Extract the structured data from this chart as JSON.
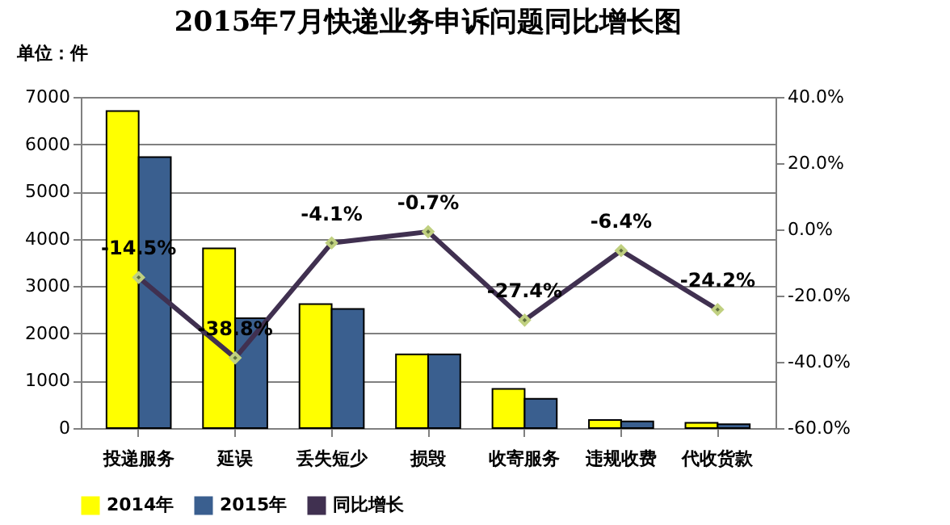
{
  "chart_data": {
    "type": "bar",
    "title": "2015年7月快递业务申诉问题同比增长图",
    "ylabel": "单位：件",
    "categories": [
      "投递服务",
      "延误",
      "丢失短少",
      "损毁",
      "收寄服务",
      "违规收费",
      "代收货款"
    ],
    "series": [
      {
        "name": "2014年",
        "color": "#ffff00",
        "values": [
          6700,
          3800,
          2620,
          1560,
          830,
          170,
          110
        ]
      },
      {
        "name": "2015年",
        "color": "#3a5f8f",
        "values": [
          5730,
          2320,
          2520,
          1560,
          620,
          140,
          80
        ]
      },
      {
        "name": "同比增长",
        "type": "line",
        "axis": "y2",
        "color": "#403050",
        "marker": "diamond",
        "values": [
          -14.5,
          -38.8,
          -4.1,
          -0.7,
          -27.4,
          -6.4,
          -24.2
        ],
        "value_labels": [
          "-14.5%",
          "-38.8%",
          "-4.1%",
          "-0.7%",
          "-27.4%",
          "-6.4%",
          "-24.2%"
        ]
      }
    ],
    "ylim": [
      0,
      7000
    ],
    "yticks": [
      0,
      1000,
      2000,
      3000,
      4000,
      5000,
      6000,
      7000
    ],
    "y2lim": [
      -60,
      40
    ],
    "y2ticks": [
      {
        "value": -60,
        "label": "-60.0%"
      },
      {
        "value": -40,
        "label": "-40.0%"
      },
      {
        "value": -20,
        "label": "-20.0%"
      },
      {
        "value": 0,
        "label": "0.0%"
      },
      {
        "value": 20,
        "label": "20.0%"
      },
      {
        "value": 40,
        "label": "40.0%"
      }
    ],
    "grid": "y",
    "legend": "bottom"
  }
}
